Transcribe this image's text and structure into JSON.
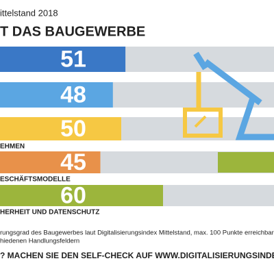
{
  "chart_data": {
    "type": "bar",
    "orientation": "horizontal",
    "subtitle": "ittelstand 2018",
    "title": "T DAS BAUGEWERBE",
    "categories": [
      null,
      null,
      "EHMEN",
      "ESCHÄFTSMODELLE",
      "HERHEIT UND DATENSCHUTZ"
    ],
    "values": [
      51,
      48,
      50,
      45,
      60
    ],
    "colors": [
      "#3a78c6",
      "#5ba6e2",
      "#f6c843",
      "#e8914a",
      "#9cb53c"
    ],
    "track_color": "#d6dade",
    "xlim": [
      0,
      100
    ],
    "footnote": [
      "rungsgrad des Baugewerbes laut Digitalisierungsindex Mittelstand, max. 100 Punkte erreichbar",
      "hiedenen Handlungsfeldern"
    ],
    "cta": "? MACHEN SIE DEN SELF-CHECK AUF WWW.DIGITALISIERUNGSINDEX.DE"
  }
}
